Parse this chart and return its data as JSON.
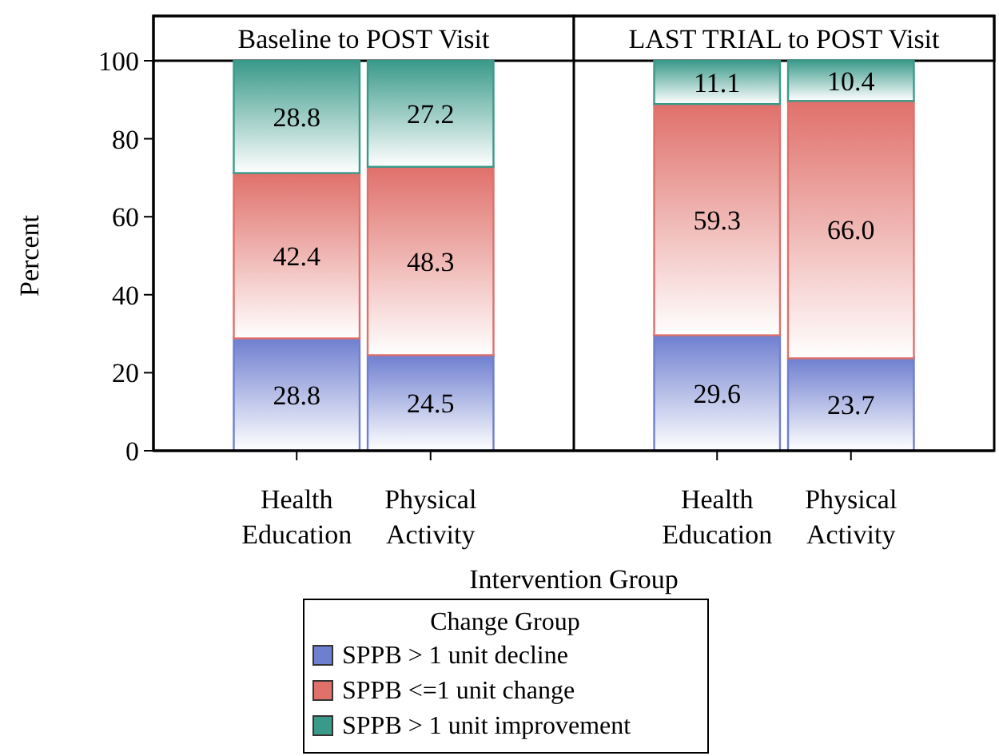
{
  "chart_data": [
    {
      "type": "bar",
      "title": "Baseline to POST Visit",
      "xlabel": "Intervention Group",
      "ylabel": "Percent",
      "legend_title": "Change Group",
      "legend": "bottom",
      "stacked": true,
      "data_labels": true,
      "ylim": [
        0,
        100
      ],
      "yticks": [
        0,
        20,
        40,
        60,
        80,
        100
      ],
      "grid": false,
      "categories": [
        "Health Education",
        "Physical Activity"
      ],
      "series": [
        {
          "name": "SPPB > 1 unit decline",
          "color": "#6f7fd0",
          "values": [
            28.8,
            24.5
          ]
        },
        {
          "name": "SPPB <=1 unit change",
          "color": "#e0706a",
          "values": [
            42.4,
            48.3
          ]
        },
        {
          "name": "SPPB > 1 unit improvement",
          "color": "#3a9a8a",
          "values": [
            28.8,
            27.2
          ]
        }
      ]
    },
    {
      "type": "bar",
      "title": "LAST TRIAL to POST Visit",
      "stacked": true,
      "data_labels": true,
      "ylim": [
        0,
        100
      ],
      "yticks": [
        0,
        20,
        40,
        60,
        80,
        100
      ],
      "grid": false,
      "tick_labels": "x",
      "categories": [
        "Health Education",
        "Physical Activity"
      ],
      "series": [
        {
          "color": "#6f7fd0",
          "values": [
            29.6,
            23.7
          ]
        },
        {
          "color": "#e0706a",
          "values": [
            59.3,
            66.0
          ],
          "value_labels": [
            "59.3",
            "66.0"
          ]
        },
        {
          "color": "#3a9a8a",
          "values": [
            11.1,
            10.4
          ]
        }
      ]
    }
  ]
}
